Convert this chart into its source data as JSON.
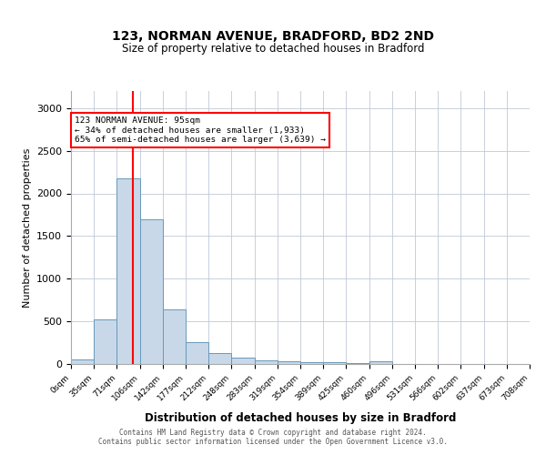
{
  "title1": "123, NORMAN AVENUE, BRADFORD, BD2 2ND",
  "title2": "Size of property relative to detached houses in Bradford",
  "xlabel": "Distribution of detached houses by size in Bradford",
  "ylabel": "Number of detached properties",
  "bin_labels": [
    "0sqm",
    "35sqm",
    "71sqm",
    "106sqm",
    "142sqm",
    "177sqm",
    "212sqm",
    "248sqm",
    "283sqm",
    "319sqm",
    "354sqm",
    "389sqm",
    "425sqm",
    "460sqm",
    "496sqm",
    "531sqm",
    "566sqm",
    "602sqm",
    "637sqm",
    "673sqm",
    "708sqm"
  ],
  "bar_values": [
    50,
    520,
    2180,
    1700,
    640,
    260,
    130,
    80,
    40,
    30,
    25,
    20,
    15,
    30,
    0,
    0,
    0,
    0,
    0,
    0
  ],
  "bar_color": "#c8d8e8",
  "bar_edgecolor": "#6699bb",
  "red_line_x": 2.71,
  "annotation_text": "123 NORMAN AVENUE: 95sqm\n← 34% of detached houses are smaller (1,933)\n65% of semi-detached houses are larger (3,639) →",
  "ylim": [
    0,
    3200
  ],
  "yticks": [
    0,
    500,
    1000,
    1500,
    2000,
    2500,
    3000
  ],
  "footer1": "Contains HM Land Registry data © Crown copyright and database right 2024.",
  "footer2": "Contains public sector information licensed under the Open Government Licence v3.0.",
  "background_color": "#f0f4f8"
}
